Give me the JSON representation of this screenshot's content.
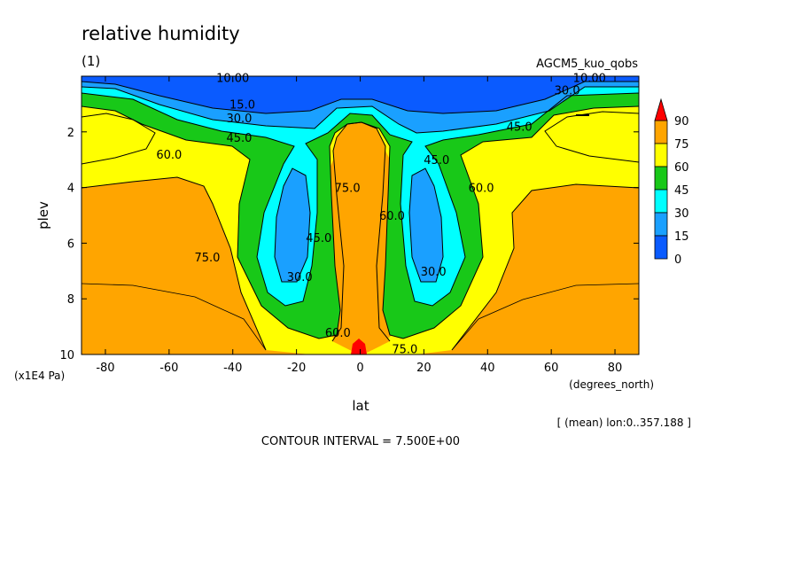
{
  "title": "relative humidity",
  "panel_label": "(1)",
  "model_name": "AGCM5_kuo_qobs",
  "xlabel": "lat",
  "xunit": "(degrees_north)",
  "ylabel": "plev",
  "yunit": "(x1E4 Pa)",
  "mean_note": "[ (mean) lon:0..357.188 ]",
  "contour_interval_text": "CONTOUR INTERVAL = 7.500E+00",
  "chart_data": {
    "type": "heatmap",
    "title": "relative humidity",
    "xlabel": "lat",
    "ylabel": "plev",
    "xlim": [
      -87.5,
      87.5
    ],
    "ylim": [
      0,
      10
    ],
    "x_ticks": [
      -80,
      -60,
      -40,
      -20,
      0,
      20,
      40,
      60,
      80
    ],
    "x_tick_labels": [
      "-80",
      "-60",
      "-40",
      "-20",
      "0",
      "20",
      "40",
      "60",
      "80"
    ],
    "y_ticks": [
      2,
      4,
      6,
      8,
      10
    ],
    "y_tick_labels": [
      "2",
      "4",
      "6",
      "8",
      "10"
    ],
    "y_inverted": true,
    "contour_interval": 7.5,
    "colorbar": {
      "levels": [
        0,
        15,
        30,
        45,
        60,
        75,
        90
      ],
      "labels": [
        "0",
        "15",
        "30",
        "45",
        "60",
        "75",
        "90"
      ],
      "colors": [
        "#0a5bff",
        "#1aa0ff",
        "#00ffff",
        "#18c818",
        "#ffff00",
        "#ffa500",
        "#ff0000"
      ]
    },
    "contour_labels": [
      {
        "text": "10.00",
        "x": -40,
        "y": 0.05
      },
      {
        "text": "15.0",
        "x": -37,
        "y": 1.0
      },
      {
        "text": "30.0",
        "x": -38,
        "y": 1.5
      },
      {
        "text": "45.0",
        "x": -38,
        "y": 2.2
      },
      {
        "text": "60.0",
        "x": -60,
        "y": 2.8
      },
      {
        "text": "75.0",
        "x": -48,
        "y": 6.5
      },
      {
        "text": "75.0",
        "x": -4,
        "y": 4.0
      },
      {
        "text": "45.0",
        "x": -13,
        "y": 5.8
      },
      {
        "text": "30.0",
        "x": -19,
        "y": 7.2
      },
      {
        "text": "60.0",
        "x": -7,
        "y": 9.2
      },
      {
        "text": "60.0",
        "x": 10,
        "y": 5.0
      },
      {
        "text": "45.0",
        "x": 24,
        "y": 3.0
      },
      {
        "text": "30.0",
        "x": 23,
        "y": 7.0
      },
      {
        "text": "60.0",
        "x": 38,
        "y": 4.0
      },
      {
        "text": "45.0",
        "x": 50,
        "y": 1.8
      },
      {
        "text": "30.0",
        "x": 65,
        "y": 0.5
      },
      {
        "text": "10.00",
        "x": 72,
        "y": 0.05
      },
      {
        "text": "75.0",
        "x": 14,
        "y": 9.8
      }
    ]
  }
}
